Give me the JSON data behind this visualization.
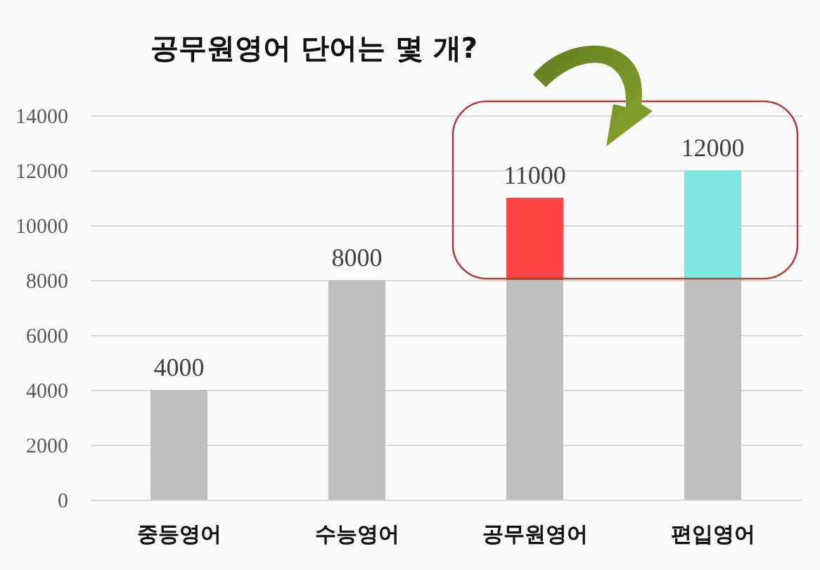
{
  "chart_data": {
    "type": "bar",
    "title": "공무원영어 단어는 몇 개?",
    "categories": [
      "중등영어",
      "수능영어",
      "공무원영어",
      "편입영어"
    ],
    "stacked": true,
    "series": [
      {
        "color": "#bfbfbf",
        "values": [
          4000,
          8000,
          8000,
          8000
        ]
      },
      {
        "colors": [
          null,
          null,
          "#ff4343",
          "#7fe6e1"
        ],
        "values": [
          null,
          null,
          3000,
          4000
        ]
      }
    ],
    "totals": [
      "4000",
      "8000",
      "11000",
      "12000"
    ],
    "ylim": [
      0,
      14000
    ],
    "yticks": [
      0,
      2000,
      4000,
      6000,
      8000,
      10000,
      12000,
      14000
    ],
    "grid": "y"
  }
}
